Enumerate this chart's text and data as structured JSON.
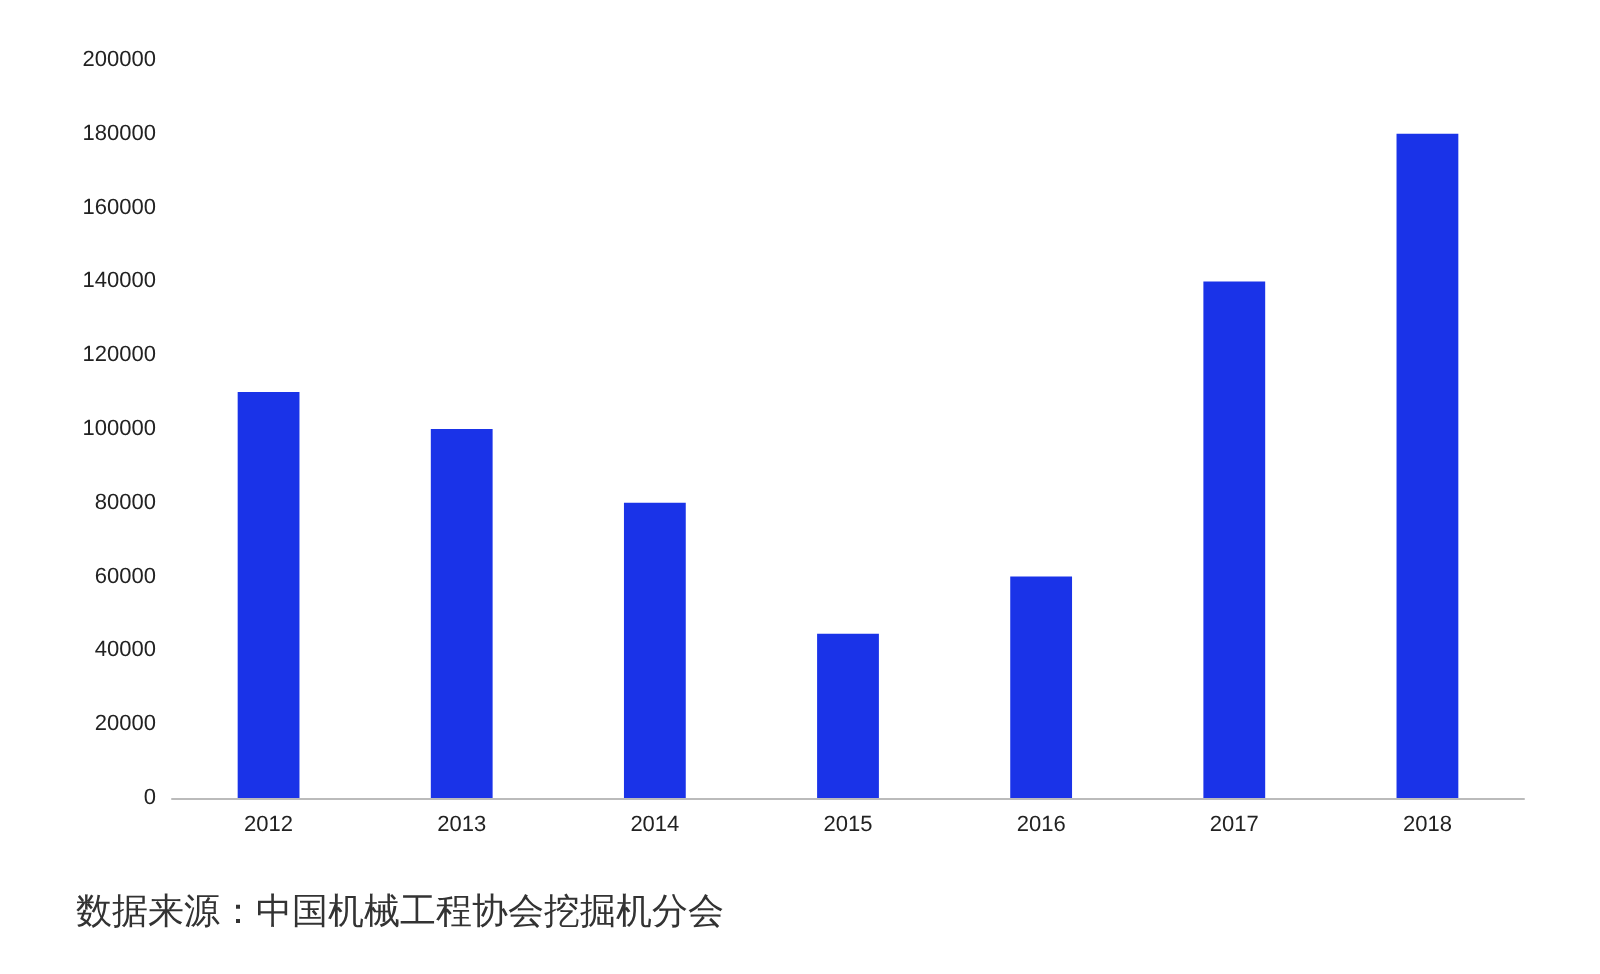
{
  "chart_data": {
    "type": "bar",
    "categories": [
      "2012",
      "2013",
      "2014",
      "2015",
      "2016",
      "2017",
      "2018"
    ],
    "values": [
      110000,
      100000,
      80000,
      44500,
      60000,
      140000,
      180000
    ],
    "color": "#1a33e8",
    "ylim": [
      0,
      200000
    ],
    "yticks": [
      0,
      20000,
      40000,
      60000,
      80000,
      100000,
      120000,
      140000,
      160000,
      180000,
      200000
    ],
    "grid": false,
    "annotations": [
      "数据来源：中国机械工程协会挖掘机分会"
    ]
  }
}
